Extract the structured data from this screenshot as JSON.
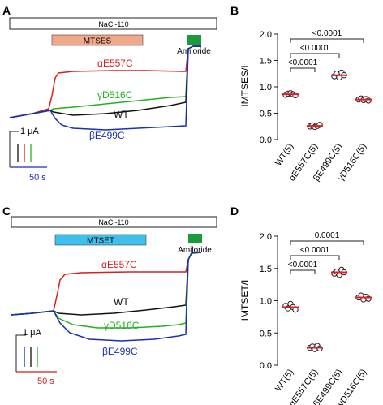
{
  "panels": {
    "A": {
      "letter": "A",
      "bar_nacl": "NaCl-110",
      "bar_reagent": "MTSES",
      "bar_amiloride": "Amiloride",
      "traces": [
        {
          "label": "αE557C",
          "color": "#d42020"
        },
        {
          "label": "γD516C",
          "color": "#22b024"
        },
        {
          "label": "WT",
          "color": "#111111"
        },
        {
          "label": "βE499C",
          "color": "#1a2fb0"
        }
      ],
      "scale_current": "1 μA",
      "scale_time": "50 s",
      "reagent_bar_color": "#f2a88a",
      "amiloride_bar_color": "#1a9a3a"
    },
    "C": {
      "letter": "C",
      "bar_nacl": "NaCl-110",
      "bar_reagent": "MTSET",
      "bar_amiloride": "Amiloride",
      "traces": [
        {
          "label": "αE557C",
          "color": "#d42020"
        },
        {
          "label": "WT",
          "color": "#111111"
        },
        {
          "label": "γD516C",
          "color": "#22b024"
        },
        {
          "label": "βE499C",
          "color": "#1a2fb0"
        }
      ],
      "scale_current": "1 μA",
      "scale_time": "50 s",
      "reagent_bar_color": "#3ec0ee",
      "amiloride_bar_color": "#1a9a3a"
    }
  },
  "chart_data": [
    {
      "panel": "B",
      "type": "scatter",
      "ylabel": "IMTSES/I",
      "ylim": [
        0,
        2.0
      ],
      "yticks": [
        "0.0",
        "0.5",
        "1.0",
        "1.5",
        "2.0"
      ],
      "categories": [
        "WT(5)",
        "αE557C(5)",
        "βE499C(5)",
        "γD516C(5)"
      ],
      "points": [
        [
          0.85,
          0.87,
          0.88,
          0.86,
          0.84
        ],
        [
          0.25,
          0.27,
          0.24,
          0.26,
          0.28
        ],
        [
          1.2,
          1.25,
          1.18,
          1.27,
          1.22
        ],
        [
          0.76,
          0.78,
          0.75,
          0.77,
          0.74
        ]
      ],
      "means": [
        0.86,
        0.26,
        1.22,
        0.76
      ],
      "comparisons": [
        {
          "from": 0,
          "to": 1,
          "label": "<0.0001"
        },
        {
          "from": 0,
          "to": 2,
          "label": "<0.0001"
        },
        {
          "from": 0,
          "to": 3,
          "label": "<0.0001"
        }
      ],
      "mean_color": "#e02020"
    },
    {
      "panel": "D",
      "type": "scatter",
      "ylabel": "IMTSET/I",
      "ylim": [
        0,
        2.0
      ],
      "yticks": [
        "0.0",
        "0.5",
        "1.0",
        "1.5",
        "2.0"
      ],
      "categories": [
        "WT(5)",
        "αE557C(5)",
        "βE499C(5)",
        "γD516C(5)"
      ],
      "points": [
        [
          0.92,
          0.88,
          0.95,
          0.9,
          0.86
        ],
        [
          0.27,
          0.29,
          0.25,
          0.3,
          0.26
        ],
        [
          1.42,
          1.45,
          1.4,
          1.48,
          1.44
        ],
        [
          1.05,
          1.08,
          1.02,
          1.06,
          1.03
        ]
      ],
      "means": [
        0.9,
        0.27,
        1.44,
        1.05
      ],
      "comparisons": [
        {
          "from": 0,
          "to": 1,
          "label": "<0.0001"
        },
        {
          "from": 0,
          "to": 2,
          "label": "<0.0001"
        },
        {
          "from": 0,
          "to": 3,
          "label": "0.0001"
        }
      ],
      "mean_color": "#e02020"
    }
  ]
}
